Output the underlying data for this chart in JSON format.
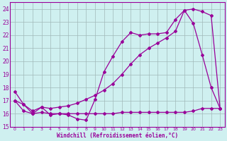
{
  "xlabel": "Windchill (Refroidissement éolien,°C)",
  "background_color": "#cff0f0",
  "grid_color": "#a0b8b8",
  "line_color": "#990099",
  "ylim": [
    15,
    24.5
  ],
  "xlim": [
    -0.5,
    23.5
  ],
  "yticks": [
    15,
    16,
    17,
    18,
    19,
    20,
    21,
    22,
    23,
    24
  ],
  "xticks": [
    0,
    1,
    2,
    3,
    4,
    5,
    6,
    7,
    8,
    9,
    10,
    11,
    12,
    13,
    14,
    15,
    16,
    17,
    18,
    19,
    20,
    21,
    22,
    23
  ],
  "series1_x": [
    0,
    1,
    2,
    3,
    4,
    5,
    6,
    7,
    8,
    9,
    10,
    11,
    12,
    13,
    14,
    15,
    16,
    17,
    18,
    19,
    20,
    21,
    22,
    23
  ],
  "series1_y": [
    17.7,
    16.7,
    16.0,
    16.5,
    15.9,
    16.0,
    15.9,
    15.6,
    15.5,
    17.1,
    19.2,
    20.4,
    21.5,
    22.2,
    22.0,
    22.1,
    22.1,
    22.2,
    23.2,
    23.9,
    22.9,
    20.5,
    18.0,
    16.4
  ],
  "series2_x": [
    0,
    1,
    2,
    3,
    4,
    5,
    6,
    7,
    8,
    9,
    10,
    11,
    12,
    13,
    14,
    15,
    16,
    17,
    18,
    19,
    20,
    21,
    22,
    23
  ],
  "series2_y": [
    17.0,
    16.7,
    16.2,
    16.5,
    16.4,
    16.5,
    16.6,
    16.8,
    17.1,
    17.4,
    17.8,
    18.3,
    19.0,
    19.8,
    20.5,
    21.0,
    21.4,
    21.8,
    22.3,
    23.9,
    24.0,
    23.8,
    23.5,
    16.4
  ],
  "series3_x": [
    0,
    1,
    2,
    3,
    4,
    5,
    6,
    7,
    8,
    9,
    10,
    11,
    12,
    13,
    14,
    15,
    16,
    17,
    18,
    19,
    20,
    21,
    22,
    23
  ],
  "series3_y": [
    17.0,
    16.2,
    16.0,
    16.1,
    16.0,
    16.0,
    16.0,
    16.0,
    16.0,
    16.0,
    16.0,
    16.0,
    16.1,
    16.1,
    16.1,
    16.1,
    16.1,
    16.1,
    16.1,
    16.1,
    16.2,
    16.4,
    16.4,
    16.4
  ]
}
